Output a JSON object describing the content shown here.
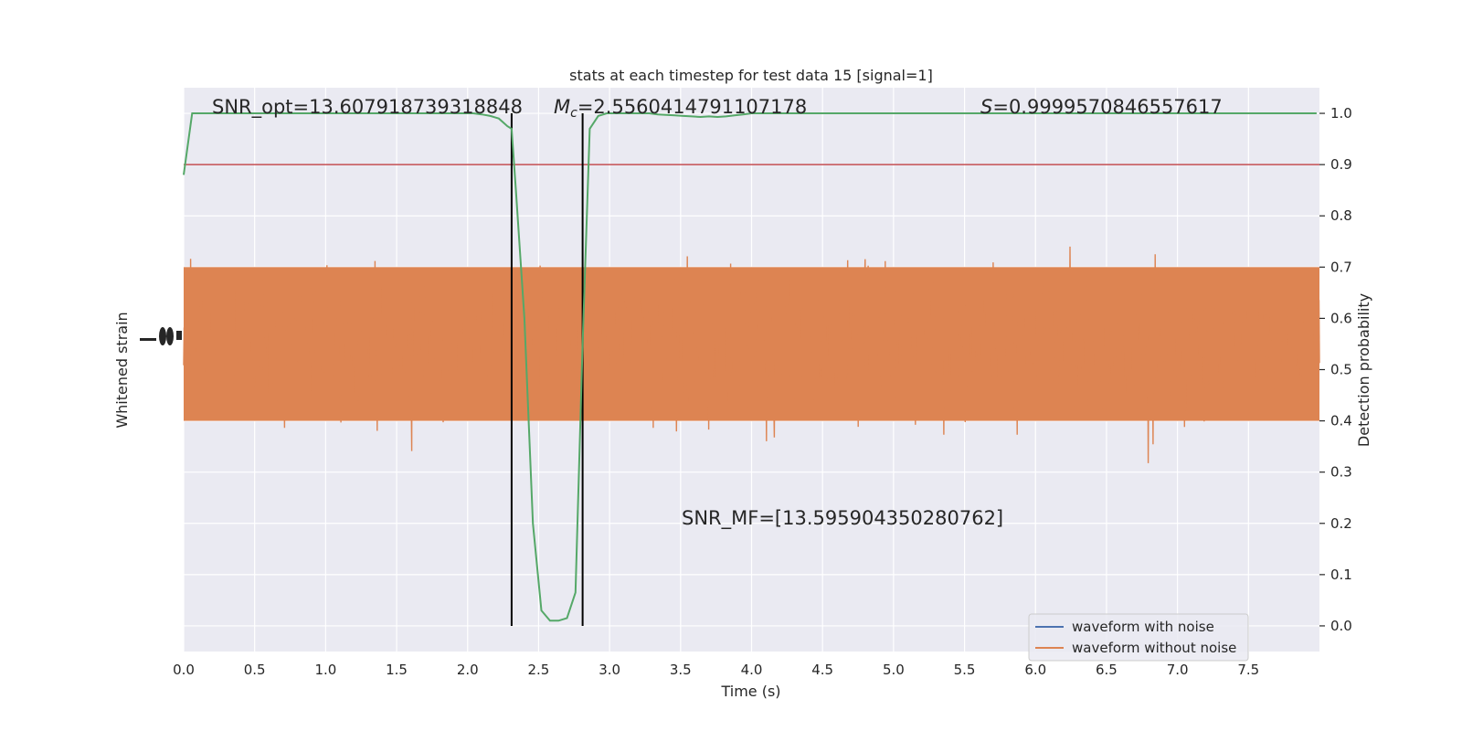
{
  "chart_data": {
    "type": "line",
    "title": "stats at each timestep for test data 15 [signal=1]",
    "xlabel": "Time (s)",
    "ylabel_left": "Whitened strain",
    "ylabel_right": "Detection probability",
    "xlim": [
      0.0,
      8.0
    ],
    "ylim_right": [
      -0.05,
      1.05
    ],
    "x_ticks": [
      "0.0",
      "0.5",
      "1.0",
      "1.5",
      "2.0",
      "2.5",
      "3.0",
      "3.5",
      "4.0",
      "4.5",
      "5.0",
      "5.5",
      "6.0",
      "6.5",
      "7.0",
      "7.5"
    ],
    "y_ticks_right": [
      "0.0",
      "0.1",
      "0.2",
      "0.3",
      "0.4",
      "0.5",
      "0.6",
      "0.7",
      "0.8",
      "0.9",
      "1.0"
    ],
    "grid": true,
    "legend_position": "lower right",
    "legend": [
      "waveform with noise",
      "waveform without noise"
    ],
    "annotations": {
      "snr_opt": "SNR_opt=13.607918739318848",
      "mc_symbol": "M",
      "mc_sub": "c",
      "mc_value": "=2.5560414791107178",
      "s_symbol": "S",
      "s_value": "=0.9999570846557617",
      "snr_mf": "SNR_MF=[13.595904350280762]"
    },
    "threshold": 0.9,
    "vlines_x": [
      2.31,
      2.81
    ],
    "detection_probability": {
      "x": [
        0.0,
        0.06,
        0.12,
        0.18,
        0.24,
        0.3,
        0.36,
        0.42,
        0.48,
        0.54,
        0.6,
        0.66,
        0.72,
        0.78,
        0.84,
        0.9,
        0.96,
        1.02,
        1.08,
        1.14,
        1.2,
        1.26,
        1.32,
        1.38,
        1.44,
        1.5,
        1.56,
        1.62,
        1.68,
        1.74,
        1.8,
        1.86,
        1.92,
        1.98,
        2.04,
        2.1,
        2.16,
        2.22,
        2.28,
        2.31,
        2.34,
        2.4,
        2.46,
        2.52,
        2.58,
        2.64,
        2.7,
        2.76,
        2.81,
        2.86,
        2.92,
        2.98,
        3.04,
        3.1,
        3.16,
        3.22,
        3.28,
        3.34,
        3.4,
        3.46,
        3.52,
        3.58,
        3.64,
        3.7,
        3.76,
        3.82,
        3.88,
        3.94,
        4.0,
        4.1,
        4.2,
        4.5,
        5.0,
        5.5,
        6.0,
        6.5,
        7.0,
        7.5,
        7.98
      ],
      "y": [
        0.88,
        1.0,
        1.0,
        1.0,
        1.0,
        1.0,
        1.0,
        1.0,
        1.0,
        1.0,
        1.0,
        1.0,
        1.0,
        1.0,
        1.0,
        1.0,
        1.0,
        1.0,
        1.0,
        1.0,
        1.0,
        1.0,
        1.0,
        1.0,
        1.0,
        1.0,
        1.0,
        1.0,
        1.0,
        1.0,
        1.0,
        1.0,
        1.0,
        1.0,
        1.0,
        0.998,
        0.995,
        0.99,
        0.975,
        0.97,
        0.85,
        0.6,
        0.2,
        0.03,
        0.01,
        0.01,
        0.015,
        0.065,
        0.55,
        0.97,
        0.995,
        1.0,
        1.0,
        1.0,
        1.0,
        1.0,
        1.0,
        0.998,
        0.997,
        0.996,
        0.995,
        0.994,
        0.993,
        0.994,
        0.993,
        0.994,
        0.996,
        0.998,
        1.0,
        1.0,
        1.0,
        1.0,
        1.0,
        1.0,
        1.0,
        1.0,
        1.0,
        1.0,
        1.0
      ]
    },
    "colors": {
      "background_plot": "#eaeaf2",
      "grid": "#ffffff",
      "waveform_with_noise": "#4c72b0",
      "waveform_without_noise": "#dd8452",
      "detection_probability": "#55a868",
      "threshold": "#c44e52",
      "vlines": "#000000"
    }
  }
}
